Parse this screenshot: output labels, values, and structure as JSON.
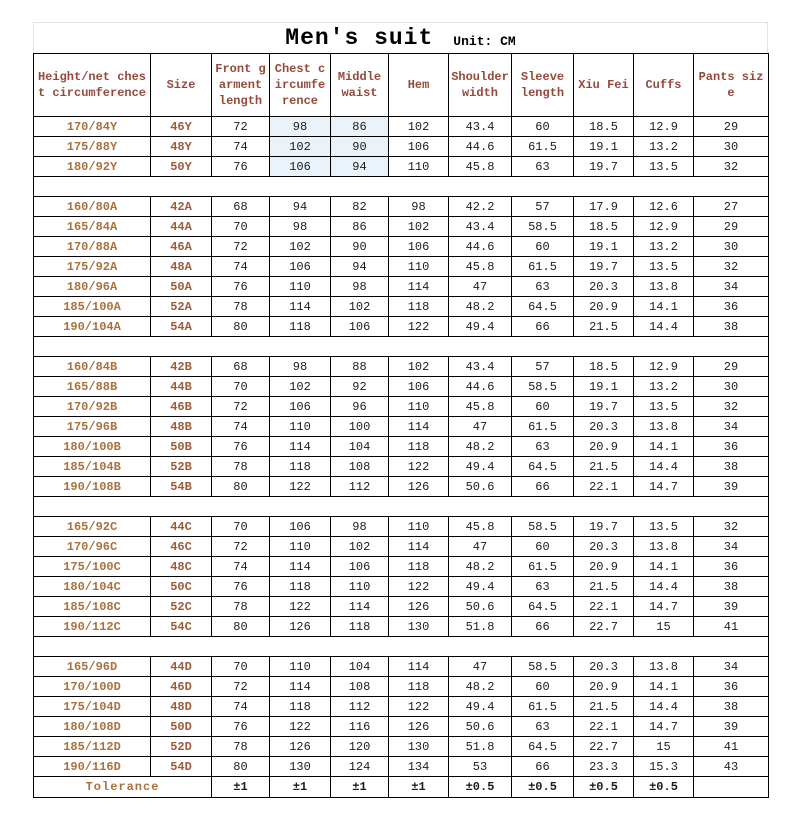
{
  "title": "Men's suit",
  "unit": "Unit: CM",
  "columns": [
    "Height/net chest circumference",
    "Size",
    "Front garment length",
    "Chest circumference",
    "Middle waist",
    "Hem",
    "Shoulder width",
    "Sleeve length",
    "Xiu Fei",
    "Cuffs",
    "Pants size"
  ],
  "groups": [
    {
      "name": "Y",
      "rows": [
        [
          "170/84Y",
          "46Y",
          "72",
          "98",
          "86",
          "102",
          "43.4",
          "60",
          "18.5",
          "12.9",
          "29"
        ],
        [
          "175/88Y",
          "48Y",
          "74",
          "102",
          "90",
          "106",
          "44.6",
          "61.5",
          "19.1",
          "13.2",
          "30"
        ],
        [
          "180/92Y",
          "50Y",
          "76",
          "106",
          "94",
          "110",
          "45.8",
          "63",
          "19.7",
          "13.5",
          "32"
        ]
      ]
    },
    {
      "name": "A",
      "rows": [
        [
          "160/80A",
          "42A",
          "68",
          "94",
          "82",
          "98",
          "42.2",
          "57",
          "17.9",
          "12.6",
          "27"
        ],
        [
          "165/84A",
          "44A",
          "70",
          "98",
          "86",
          "102",
          "43.4",
          "58.5",
          "18.5",
          "12.9",
          "29"
        ],
        [
          "170/88A",
          "46A",
          "72",
          "102",
          "90",
          "106",
          "44.6",
          "60",
          "19.1",
          "13.2",
          "30"
        ],
        [
          "175/92A",
          "48A",
          "74",
          "106",
          "94",
          "110",
          "45.8",
          "61.5",
          "19.7",
          "13.5",
          "32"
        ],
        [
          "180/96A",
          "50A",
          "76",
          "110",
          "98",
          "114",
          "47",
          "63",
          "20.3",
          "13.8",
          "34"
        ],
        [
          "185/100A",
          "52A",
          "78",
          "114",
          "102",
          "118",
          "48.2",
          "64.5",
          "20.9",
          "14.1",
          "36"
        ],
        [
          "190/104A",
          "54A",
          "80",
          "118",
          "106",
          "122",
          "49.4",
          "66",
          "21.5",
          "14.4",
          "38"
        ]
      ]
    },
    {
      "name": "B",
      "rows": [
        [
          "160/84B",
          "42B",
          "68",
          "98",
          "88",
          "102",
          "43.4",
          "57",
          "18.5",
          "12.9",
          "29"
        ],
        [
          "165/88B",
          "44B",
          "70",
          "102",
          "92",
          "106",
          "44.6",
          "58.5",
          "19.1",
          "13.2",
          "30"
        ],
        [
          "170/92B",
          "46B",
          "72",
          "106",
          "96",
          "110",
          "45.8",
          "60",
          "19.7",
          "13.5",
          "32"
        ],
        [
          "175/96B",
          "48B",
          "74",
          "110",
          "100",
          "114",
          "47",
          "61.5",
          "20.3",
          "13.8",
          "34"
        ],
        [
          "180/100B",
          "50B",
          "76",
          "114",
          "104",
          "118",
          "48.2",
          "63",
          "20.9",
          "14.1",
          "36"
        ],
        [
          "185/104B",
          "52B",
          "78",
          "118",
          "108",
          "122",
          "49.4",
          "64.5",
          "21.5",
          "14.4",
          "38"
        ],
        [
          "190/108B",
          "54B",
          "80",
          "122",
          "112",
          "126",
          "50.6",
          "66",
          "22.1",
          "14.7",
          "39"
        ]
      ]
    },
    {
      "name": "C",
      "rows": [
        [
          "165/92C",
          "44C",
          "70",
          "106",
          "98",
          "110",
          "45.8",
          "58.5",
          "19.7",
          "13.5",
          "32"
        ],
        [
          "170/96C",
          "46C",
          "72",
          "110",
          "102",
          "114",
          "47",
          "60",
          "20.3",
          "13.8",
          "34"
        ],
        [
          "175/100C",
          "48C",
          "74",
          "114",
          "106",
          "118",
          "48.2",
          "61.5",
          "20.9",
          "14.1",
          "36"
        ],
        [
          "180/104C",
          "50C",
          "76",
          "118",
          "110",
          "122",
          "49.4",
          "63",
          "21.5",
          "14.4",
          "38"
        ],
        [
          "185/108C",
          "52C",
          "78",
          "122",
          "114",
          "126",
          "50.6",
          "64.5",
          "22.1",
          "14.7",
          "39"
        ],
        [
          "190/112C",
          "54C",
          "80",
          "126",
          "118",
          "130",
          "51.8",
          "66",
          "22.7",
          "15",
          "41"
        ]
      ]
    },
    {
      "name": "D",
      "rows": [
        [
          "165/96D",
          "44D",
          "70",
          "110",
          "104",
          "114",
          "47",
          "58.5",
          "20.3",
          "13.8",
          "34"
        ],
        [
          "170/100D",
          "46D",
          "72",
          "114",
          "108",
          "118",
          "48.2",
          "60",
          "20.9",
          "14.1",
          "36"
        ],
        [
          "175/104D",
          "48D",
          "74",
          "118",
          "112",
          "122",
          "49.4",
          "61.5",
          "21.5",
          "14.4",
          "38"
        ],
        [
          "180/108D",
          "50D",
          "76",
          "122",
          "116",
          "126",
          "50.6",
          "63",
          "22.1",
          "14.7",
          "39"
        ],
        [
          "185/112D",
          "52D",
          "78",
          "126",
          "120",
          "130",
          "51.8",
          "64.5",
          "22.7",
          "15",
          "41"
        ],
        [
          "190/116D",
          "54D",
          "80",
          "130",
          "124",
          "134",
          "53",
          "66",
          "23.3",
          "15.3",
          "43"
        ]
      ]
    }
  ],
  "tolerance": {
    "label": "Tolerance",
    "values": [
      "±1",
      "±1",
      "±1",
      "±1",
      "±0.5",
      "±0.5",
      "±0.5",
      "±0.5",
      ""
    ]
  },
  "highlight": {
    "group_index": 0,
    "column_indices": [
      3,
      4
    ]
  },
  "colors": {
    "title_text": "#000000",
    "header_text": "#96493a",
    "spec_text": "#a9713c",
    "size_text": "#9d5a3a",
    "body_text": "#1c1c1c",
    "border": "#000000",
    "highlight": "#eaf3fa"
  }
}
